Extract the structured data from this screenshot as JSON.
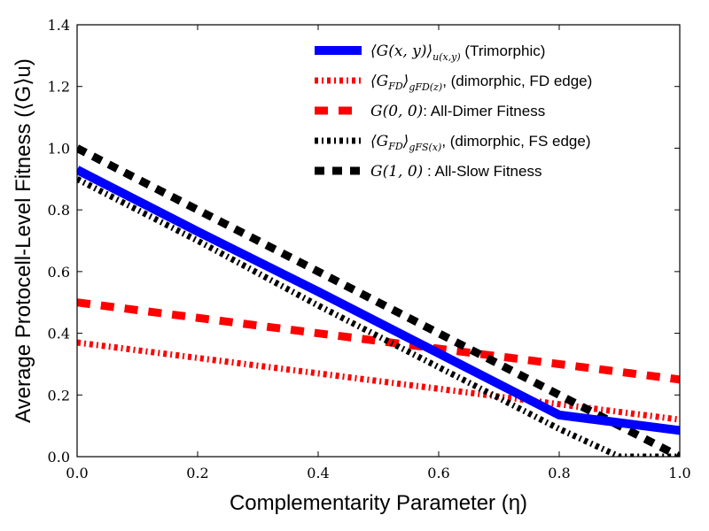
{
  "chart_data": {
    "type": "line",
    "title": "",
    "xlabel": "Complementarity Parameter (η)",
    "ylabel": "Average Protocell-Level Fitness (⟨G⟩u)",
    "xlim": [
      0,
      1
    ],
    "ylim": [
      0,
      1.4
    ],
    "x_ticks": [
      "0.0",
      "0.2",
      "0.4",
      "0.6",
      "0.8",
      "1.0"
    ],
    "y_ticks": [
      "0.0",
      "0.2",
      "0.4",
      "0.6",
      "0.8",
      "1.0",
      "1.2",
      "1.4"
    ],
    "grid": false,
    "legend_position": "top-right",
    "series": [
      {
        "key": "trimorphic",
        "name": "⟨G(x,y)⟩u(x,y) (Trimorphic)",
        "legend": {
          "math": "⟨G(x, y)⟩",
          "sub": "u(x,y)",
          "text": " (Trimorphic)"
        },
        "color": "#0000ff",
        "style": "solid",
        "x": [
          0.0,
          0.2,
          0.4,
          0.6,
          0.8,
          1.0
        ],
        "y": [
          0.93,
          0.73,
          0.535,
          0.335,
          0.135,
          0.085
        ]
      },
      {
        "key": "fd-edge",
        "name": "⟨GFD⟩gFD(z), (dimorphic, FD edge)",
        "legend": {
          "math": "⟨G",
          "msub": "FD",
          "math2": "⟩",
          "sub": "gFD(z)",
          "text": ", (dimorphic, FD edge)"
        },
        "color": "#ff0000",
        "style": "dashdot",
        "x": [
          0.0,
          1.0
        ],
        "y": [
          0.37,
          0.12
        ]
      },
      {
        "key": "all-dimer",
        "name": "G(0,0): All-Dimer Fitness",
        "legend": {
          "math": "G(0, 0)",
          "text": ": All-Dimer Fitness"
        },
        "color": "#ff0000",
        "style": "dashed",
        "x": [
          0.0,
          1.0
        ],
        "y": [
          0.5,
          0.25
        ]
      },
      {
        "key": "fs-edge",
        "name": "⟨GFD⟩gFS(x), (dimorphic, FS edge)",
        "legend": {
          "math": "⟨G",
          "msub": "FD",
          "math2": "⟩",
          "sub": "gFS(x)",
          "text": ", (dimorphic, FS edge)"
        },
        "color": "#000000",
        "style": "dashdot",
        "x": [
          0.0,
          0.2,
          0.4,
          0.6,
          0.8,
          0.9,
          1.0
        ],
        "y": [
          0.9,
          0.7,
          0.49,
          0.29,
          0.09,
          0.0,
          0.0
        ]
      },
      {
        "key": "all-slow",
        "name": "G(1,0): All-Slow Fitness",
        "legend": {
          "math": "G(1, 0)",
          "text": " : All-Slow Fitness"
        },
        "color": "#000000",
        "style": "dashed",
        "x": [
          0.0,
          0.2,
          0.4,
          0.6,
          0.8,
          1.0
        ],
        "y": [
          1.0,
          0.8,
          0.6,
          0.4,
          0.2,
          0.0
        ]
      }
    ]
  }
}
